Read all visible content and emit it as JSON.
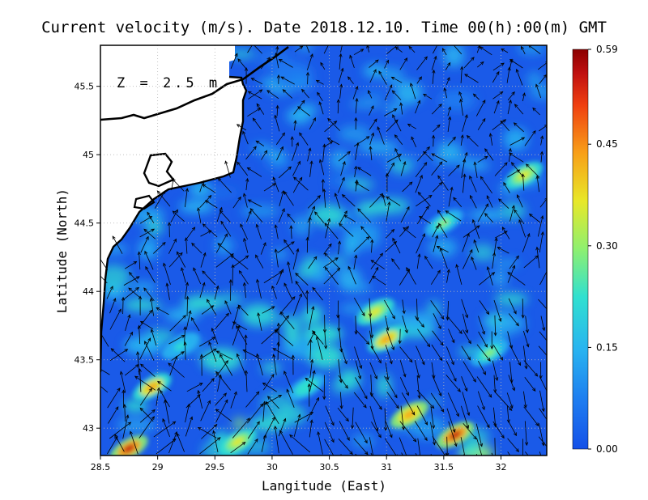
{
  "title": "Current velocity (m/s). Date 2018.12.10. Time 00(h):00(m) GMT",
  "depth_label": "Z = 2.5 m",
  "x_axis": {
    "label": "Langitude (East)",
    "range": [
      28.5,
      32.4
    ],
    "ticks": [
      {
        "value": 28.5,
        "label": "28.5"
      },
      {
        "value": 29,
        "label": "29"
      },
      {
        "value": 29.5,
        "label": "29.5"
      },
      {
        "value": 30,
        "label": "30"
      },
      {
        "value": 30.5,
        "label": "30.5"
      },
      {
        "value": 31,
        "label": "31"
      },
      {
        "value": 31.5,
        "label": "31.5"
      },
      {
        "value": 32,
        "label": "32"
      }
    ]
  },
  "y_axis": {
    "label": "Latitude (North)",
    "range": [
      42.8,
      45.8
    ],
    "ticks": [
      {
        "value": 43,
        "label": "43"
      },
      {
        "value": 43.5,
        "label": "43.5"
      },
      {
        "value": 44,
        "label": "44"
      },
      {
        "value": 44.5,
        "label": "44.5"
      },
      {
        "value": 45,
        "label": "45"
      },
      {
        "value": 45.5,
        "label": "45.5"
      }
    ]
  },
  "colorbar": {
    "min": 0.0,
    "max": 0.59,
    "ticks": [
      {
        "value": 0.0,
        "label": "0.00"
      },
      {
        "value": 0.15,
        "label": "0.15"
      },
      {
        "value": 0.3,
        "label": "0.30"
      },
      {
        "value": 0.45,
        "label": "0.45"
      },
      {
        "value": 0.59,
        "label": "0.59"
      }
    ],
    "colors": [
      "#1450e8",
      "#1e7cf0",
      "#28b4f0",
      "#30e0d0",
      "#8ef070",
      "#e8e828",
      "#f8a018",
      "#f04010",
      "#c01010",
      "#8b0000"
    ]
  },
  "chart_data": {
    "type": "heatmap",
    "variable": "Current velocity",
    "units": "m/s",
    "grid": true,
    "hotspots": [
      {
        "lon": 31.6,
        "lat": 42.95,
        "speed": 0.5
      },
      {
        "lon": 31.2,
        "lat": 43.1,
        "speed": 0.42
      },
      {
        "lon": 31.0,
        "lat": 43.65,
        "speed": 0.38
      },
      {
        "lon": 30.9,
        "lat": 43.85,
        "speed": 0.35
      },
      {
        "lon": 28.75,
        "lat": 42.85,
        "speed": 0.5
      },
      {
        "lon": 28.95,
        "lat": 43.3,
        "speed": 0.4
      },
      {
        "lon": 29.7,
        "lat": 42.9,
        "speed": 0.35
      },
      {
        "lon": 31.9,
        "lat": 43.55,
        "speed": 0.28
      },
      {
        "lon": 32.2,
        "lat": 44.85,
        "speed": 0.3
      },
      {
        "lon": 31.5,
        "lat": 44.5,
        "speed": 0.28
      },
      {
        "lon": 30.3,
        "lat": 43.3,
        "speed": 0.22
      },
      {
        "lon": 29.2,
        "lat": 43.6,
        "speed": 0.2
      }
    ]
  }
}
